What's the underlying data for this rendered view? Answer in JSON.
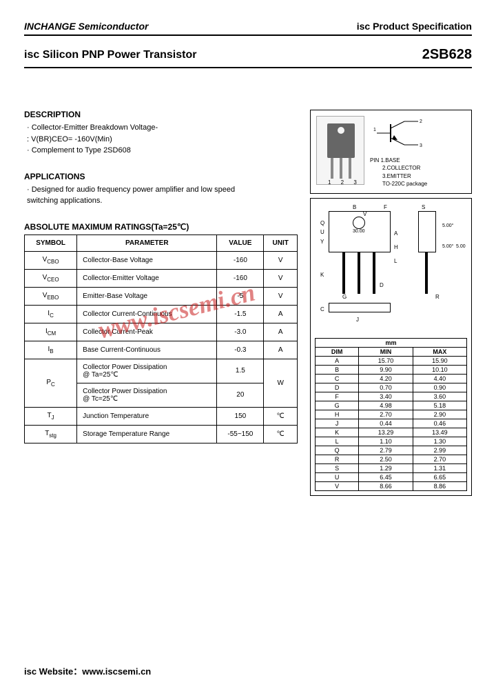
{
  "header": {
    "company": "INCHANGE Semiconductor",
    "right_prefix": "isc",
    "right_text": " Product Specification"
  },
  "title": {
    "left": "isc Silicon PNP Power Transistor",
    "right": "2SB628"
  },
  "description": {
    "heading": "DESCRIPTION",
    "items": [
      "· Collector-Emitter Breakdown Voltage-",
      "  : V(BR)CEO= -160V(Min)",
      "· Complement to Type 2SD608"
    ]
  },
  "applications": {
    "heading": "APPLICATIONS",
    "items": [
      "· Designed for audio frequency power amplifier and low speed",
      "  switching applications."
    ]
  },
  "ratings": {
    "heading": "ABSOLUTE MAXIMUM RATINGS(Ta=25℃)",
    "columns": [
      "SYMBOL",
      "PARAMETER",
      "VALUE",
      "UNIT"
    ],
    "rows": [
      {
        "sym": "V",
        "sub": "CBO",
        "param": "Collector-Base Voltage",
        "value": "-160",
        "unit": "V"
      },
      {
        "sym": "V",
        "sub": "CEO",
        "param": "Collector-Emitter Voltage",
        "value": "-160",
        "unit": "V"
      },
      {
        "sym": "V",
        "sub": "EBO",
        "param": "Emitter-Base Voltage",
        "value": "-5",
        "unit": "V"
      },
      {
        "sym": "I",
        "sub": "C",
        "param": "Collector Current-Continuous",
        "value": "-1.5",
        "unit": "A"
      },
      {
        "sym": "I",
        "sub": "CM",
        "param": "Collector Current-Peak",
        "value": "-3.0",
        "unit": "A"
      },
      {
        "sym": "I",
        "sub": "B",
        "param": "Base Current-Continuous",
        "value": "-0.3",
        "unit": "A"
      }
    ],
    "pc_rows": [
      {
        "param": "Collector Power Dissipation\n@ Ta=25℃",
        "value": "1.5"
      },
      {
        "param": "Collector Power Dissipation\n@ Tc=25℃",
        "value": "20"
      }
    ],
    "pc_sym": "P",
    "pc_sub": "C",
    "pc_unit": "W",
    "tj": {
      "sym": "T",
      "sub": "J",
      "param": "Junction Temperature",
      "value": "150",
      "unit": "℃"
    },
    "tstg": {
      "sym": "T",
      "sub": "stg",
      "param": "Storage Temperature Range",
      "value": "-55~150",
      "unit": "℃"
    }
  },
  "package": {
    "pin_nums": "1  2  3",
    "pin_heading": "PIN",
    "pins": [
      "1.BASE",
      "2.COLLECTOR",
      "3.EMITTER"
    ],
    "pkg_name": "TO-220C package"
  },
  "dims": {
    "unit_label": "mm",
    "columns": [
      "DIM",
      "MIN",
      "MAX"
    ],
    "rows": [
      [
        "A",
        "15.70",
        "15.90"
      ],
      [
        "B",
        "9.90",
        "10.10"
      ],
      [
        "C",
        "4.20",
        "4.40"
      ],
      [
        "D",
        "0.70",
        "0.90"
      ],
      [
        "F",
        "3.40",
        "3.60"
      ],
      [
        "G",
        "4.98",
        "5.18"
      ],
      [
        "H",
        "2.70",
        "2.90"
      ],
      [
        "J",
        "0.44",
        "0.46"
      ],
      [
        "K",
        "13.29",
        "13.49"
      ],
      [
        "L",
        "1.10",
        "1.30"
      ],
      [
        "Q",
        "2.79",
        "2.99"
      ],
      [
        "R",
        "2.50",
        "2.70"
      ],
      [
        "S",
        "1.29",
        "1.31"
      ],
      [
        "U",
        "6.45",
        "6.65"
      ],
      [
        "V",
        "8.66",
        "8.86"
      ]
    ]
  },
  "watermark": "www.iscsemi.cn",
  "footer": "isc Website：www.iscsemi.cn",
  "colors": {
    "text": "#000000",
    "watermark": "rgba(200,30,30,0.55)",
    "bg": "#ffffff"
  }
}
